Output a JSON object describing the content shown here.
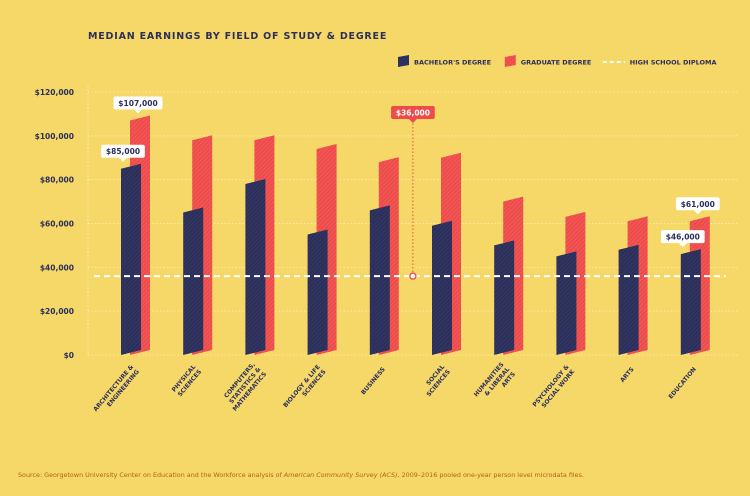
{
  "chart_data": {
    "type": "bar",
    "title": "MEDIAN EARNINGS BY FIELD OF STUDY & DEGREE",
    "categories": [
      [
        "ARCHITECTURE &",
        "ENGINEERING"
      ],
      [
        "PHYSICAL",
        "SCIENCES"
      ],
      [
        "COMPUTERS,",
        "STATISTICS &",
        "MATHEMATICS"
      ],
      [
        "BIOLOGY & LIFE",
        "SCIENCES"
      ],
      [
        "BUSINESS"
      ],
      [
        "SOCIAL",
        "SCIENCES"
      ],
      [
        "HUMANITIES",
        "& LIBERAL",
        "ARTS"
      ],
      [
        "PSYCHOLOGY &",
        "SOCIAL WORK"
      ],
      [
        "ARTS"
      ],
      [
        "EDUCATION"
      ]
    ],
    "series": [
      {
        "name": "BACHELOR'S DEGREE",
        "values": [
          85000,
          65000,
          78000,
          55000,
          66000,
          59000,
          50000,
          45000,
          48000,
          46000
        ],
        "color": "#2b2f5a"
      },
      {
        "name": "GRADUATE DEGREE",
        "values": [
          107000,
          98000,
          98000,
          94000,
          88000,
          90000,
          70000,
          63000,
          61000,
          61000
        ],
        "color": "#ee4b4b"
      }
    ],
    "reference_line": {
      "name": "HIGH SCHOOL DIPLOMA",
      "value": 36000,
      "color": "#ffffff"
    },
    "y_ticks": [
      0,
      20000,
      40000,
      60000,
      80000,
      100000,
      120000
    ],
    "y_tick_labels": [
      "$0",
      "$20,000",
      "$40,000",
      "$60,000",
      "$80,000",
      "$100,000",
      "$120,000"
    ],
    "ylim": [
      0,
      120000
    ],
    "grid": true,
    "legend_position": "top-right",
    "annotations": [
      {
        "text": "$107,000",
        "category_index": 0,
        "series": 1,
        "style": "white"
      },
      {
        "text": "$85,000",
        "category_index": 0,
        "series": 0,
        "style": "white"
      },
      {
        "text": "$36,000",
        "category_index": 4.5,
        "series": "reference",
        "style": "red"
      },
      {
        "text": "$61,000",
        "category_index": 9,
        "series": 1,
        "style": "white"
      },
      {
        "text": "$46,000",
        "category_index": 9,
        "series": 0,
        "style": "white"
      }
    ],
    "source_prefix": "Source: Georgetown University Center on Education and the Workforce analysis of ",
    "source_italic": "American Community Survey (ACS)",
    "source_suffix": ", 2009–2016 pooled one-year person level microdata files."
  }
}
